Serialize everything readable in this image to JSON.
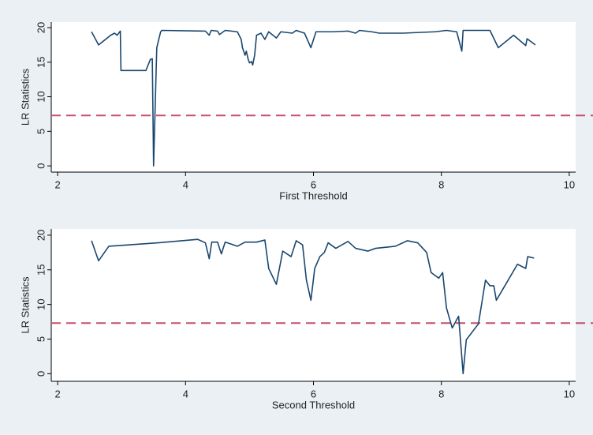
{
  "chart_data": [
    {
      "type": "line",
      "x_label": "First Threshold",
      "y_label": "LR Statistics",
      "xlim": [
        1.9,
        10.1
      ],
      "ylim": [
        -0.9,
        20.8
      ],
      "xticks": [
        2,
        4,
        6,
        8,
        10
      ],
      "yticks": [
        0,
        5,
        10,
        15,
        20
      ],
      "hline": 7.3,
      "hline_color": "#c4506b",
      "hline_style": "dashed",
      "series": [
        {
          "color": "#1a476f",
          "x": [
            2.53,
            2.64,
            2.83,
            2.89,
            2.93,
            2.98,
            2.99,
            3.38,
            3.45,
            3.48,
            3.5,
            3.55,
            3.61,
            3.63,
            4.31,
            4.37,
            4.4,
            4.5,
            4.53,
            4.62,
            4.81,
            4.87,
            4.89,
            4.93,
            4.95,
            4.98,
            5.0,
            5.03,
            5.05,
            5.08,
            5.11,
            5.18,
            5.24,
            5.3,
            5.42,
            5.49,
            5.67,
            5.73,
            5.86,
            5.96,
            6.04,
            6.29,
            6.54,
            6.66,
            6.72,
            6.91,
            7.03,
            7.4,
            7.9,
            8.08,
            8.24,
            8.32,
            8.34,
            8.76,
            8.89,
            9.13,
            9.32,
            9.34,
            9.47
          ],
          "values": [
            19.4,
            17.5,
            18.9,
            19.2,
            18.9,
            19.5,
            13.8,
            13.8,
            15.4,
            15.5,
            0,
            17.1,
            19.4,
            19.6,
            19.5,
            18.9,
            19.6,
            19.5,
            19.0,
            19.6,
            19.4,
            18.3,
            17.1,
            16.0,
            16.6,
            15.4,
            14.9,
            15.1,
            14.6,
            16.0,
            18.9,
            19.2,
            18.3,
            19.4,
            18.5,
            19.4,
            19.2,
            19.6,
            19.2,
            17.1,
            19.4,
            19.4,
            19.5,
            19.2,
            19.6,
            19.4,
            19.2,
            19.2,
            19.4,
            19.6,
            19.4,
            16.6,
            19.6,
            19.6,
            17.1,
            18.9,
            17.4,
            18.4,
            17.5
          ]
        }
      ]
    },
    {
      "type": "line",
      "x_label": "Second Threshold",
      "y_label": "LR Statistics",
      "xlim": [
        1.9,
        10.1
      ],
      "ylim": [
        -1.1,
        20.9
      ],
      "xticks": [
        2,
        4,
        6,
        8,
        10
      ],
      "yticks": [
        0,
        5,
        10,
        15,
        20
      ],
      "hline": 7.3,
      "hline_color": "#c4506b",
      "hline_style": "dashed",
      "series": [
        {
          "color": "#1a476f",
          "x": [
            2.53,
            2.64,
            2.8,
            3.57,
            4.19,
            4.31,
            4.37,
            4.41,
            4.5,
            4.56,
            4.62,
            4.81,
            4.93,
            5.11,
            5.24,
            5.3,
            5.42,
            5.52,
            5.65,
            5.73,
            5.83,
            5.89,
            5.96,
            6.02,
            6.1,
            6.17,
            6.23,
            6.35,
            6.54,
            6.66,
            6.85,
            6.97,
            7.28,
            7.47,
            7.63,
            7.77,
            7.84,
            7.96,
            8.02,
            8.08,
            8.17,
            8.27,
            8.34,
            8.39,
            8.58,
            8.69,
            8.76,
            8.82,
            8.86,
            9.19,
            9.32,
            9.35,
            9.45
          ],
          "values": [
            19.2,
            16.3,
            18.4,
            18.9,
            19.4,
            18.9,
            16.6,
            19.0,
            19.0,
            17.3,
            19.0,
            18.4,
            19.0,
            19.0,
            19.3,
            15.2,
            12.9,
            17.7,
            16.9,
            19.2,
            18.6,
            13.5,
            10.6,
            15.2,
            16.9,
            17.5,
            18.9,
            18.1,
            19.1,
            18.1,
            17.7,
            18.1,
            18.4,
            19.2,
            18.9,
            17.5,
            14.6,
            13.8,
            14.6,
            9.5,
            6.6,
            8.3,
            0,
            4.9,
            7.2,
            13.5,
            12.7,
            12.7,
            10.6,
            15.8,
            15.2,
            16.9,
            16.7
          ]
        }
      ]
    }
  ]
}
